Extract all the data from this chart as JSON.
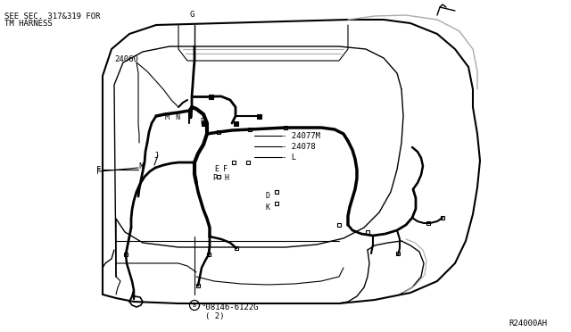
{
  "bg_color": "#ffffff",
  "line_color": "#000000",
  "gray_color": "#aaaaaa",
  "text_color": "#000000",
  "labels": {
    "top_left_line1": "SEE SEC. 317&319 FOR",
    "top_left_line2": "TM HARNESS",
    "part_number": "24060",
    "label_24077M": "- 24077M",
    "label_24078": "- 24078",
    "label_L": "- L",
    "bottom_part": "°08146-6122G",
    "bottom_sub": "( 2)",
    "ref_code": "R24000AH"
  },
  "figsize": [
    6.4,
    3.72
  ],
  "dpi": 100
}
